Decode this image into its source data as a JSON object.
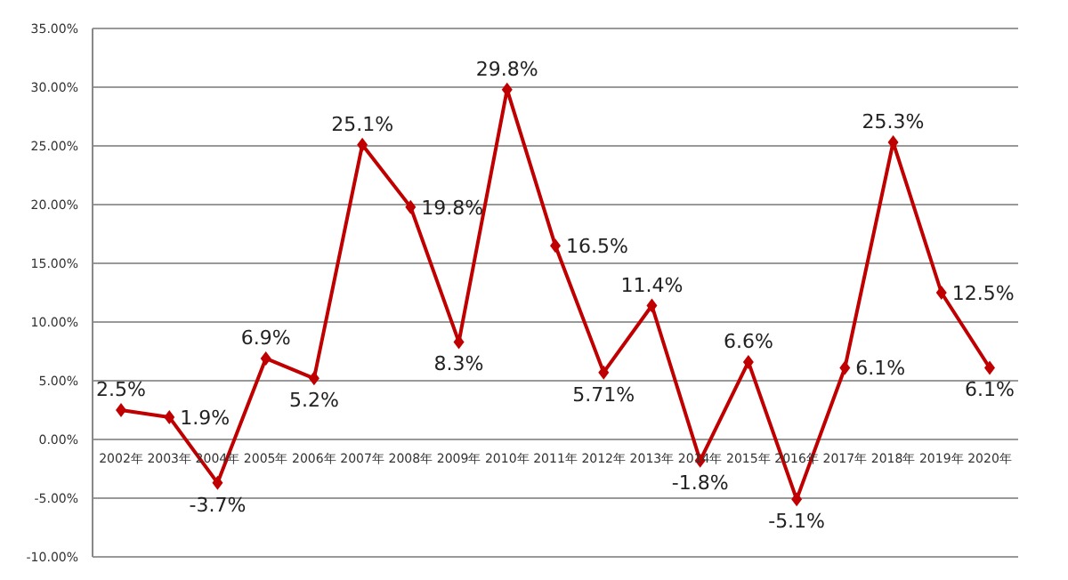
{
  "chart_data": {
    "type": "line",
    "categories": [
      "2002年",
      "2003年",
      "2004年",
      "2005年",
      "2006年",
      "2007年",
      "2008年",
      "2009年",
      "2010年",
      "2011年",
      "2012年",
      "2013年",
      "2014年",
      "2015年",
      "2016年",
      "2017年",
      "2018年",
      "2019年",
      "2020年"
    ],
    "series": [
      {
        "color": "#c00000",
        "values": [
          2.5,
          1.9,
          -3.7,
          6.9,
          5.2,
          25.1,
          19.8,
          8.3,
          29.8,
          16.5,
          5.71,
          11.4,
          -1.8,
          6.6,
          -5.1,
          6.1,
          25.3,
          12.5,
          6.1
        ],
        "value_labels": [
          "2.5%",
          "1.9%",
          "-3.7%",
          "6.9%",
          "5.2%",
          "25.1%",
          "19.8%",
          "8.3%",
          "29.8%",
          "16.5%",
          "5.71%",
          "11.4%",
          "-1.8%",
          "6.6%",
          "-5.1%",
          "6.1%",
          "25.3%",
          "12.5%",
          "6.1%"
        ]
      }
    ],
    "ylim": [
      -10,
      35
    ],
    "yticks": [
      {
        "value": -10,
        "label": "-10.00%"
      },
      {
        "value": -5,
        "label": "-5.00%"
      },
      {
        "value": 0,
        "label": "0.00%"
      },
      {
        "value": 5,
        "label": "5.00%"
      },
      {
        "value": 10,
        "label": "10.00%"
      },
      {
        "value": 15,
        "label": "15.00%"
      },
      {
        "value": 20,
        "label": "20.00%"
      },
      {
        "value": 25,
        "label": "25.00%"
      },
      {
        "value": 30,
        "label": "30.00%"
      },
      {
        "value": 35,
        "label": "35.00%"
      }
    ],
    "grid": "y",
    "marker": "diamond",
    "line_style": "solid",
    "legend": false
  }
}
